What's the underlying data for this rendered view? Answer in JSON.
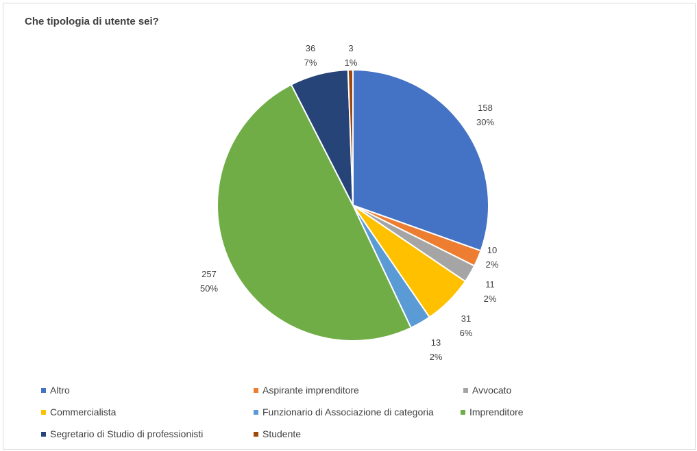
{
  "chart_data": {
    "type": "pie",
    "title": "Che tipologia di utente sei?",
    "categories": [
      "Altro",
      "Aspirante imprenditore",
      "Avvocato",
      "Commercialista",
      "Funzionario di Associazione di categoria",
      "Imprenditore",
      "Segretario di Studio di professionisti",
      "Studente"
    ],
    "values": [
      158,
      10,
      11,
      31,
      13,
      257,
      36,
      3
    ],
    "percent_labels": [
      "30%",
      "2%",
      "2%",
      "6%",
      "2%",
      "50%",
      "7%",
      "1%"
    ],
    "colors": [
      "#4472c4",
      "#ed7d31",
      "#a5a5a5",
      "#ffc000",
      "#5b9bd5",
      "#70ad47",
      "#264478",
      "#9e480e"
    ],
    "legend_position": "bottom",
    "data_labels_show": [
      "value",
      "percent"
    ]
  }
}
